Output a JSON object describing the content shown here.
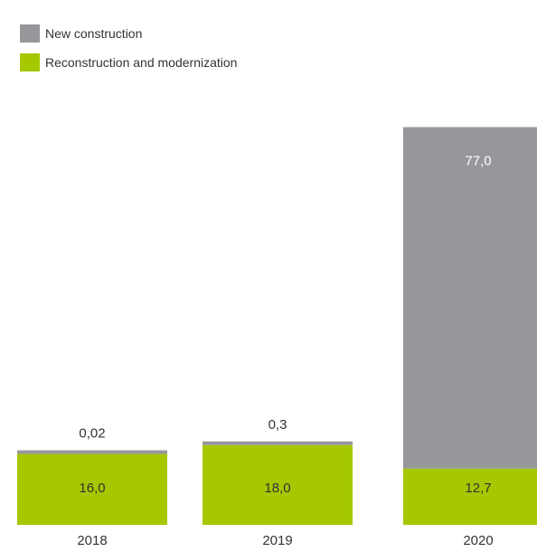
{
  "chart_data": {
    "type": "bar",
    "stacked": true,
    "categories": [
      "2018",
      "2019",
      "2020"
    ],
    "series": [
      {
        "name": "Reconstruction and modernization",
        "values": [
          16.0,
          18.0,
          12.7
        ],
        "labels": [
          "16,0",
          "18,0",
          "12,7"
        ],
        "color": "#a5c800"
      },
      {
        "name": "New construction",
        "values": [
          0.02,
          0.3,
          77.0
        ],
        "labels": [
          "0,02",
          "0,3",
          "77,0"
        ],
        "color": "#96979b"
      }
    ],
    "title": "",
    "xlabel": "",
    "ylabel": "",
    "grid": false,
    "legend_position": "top-left"
  }
}
